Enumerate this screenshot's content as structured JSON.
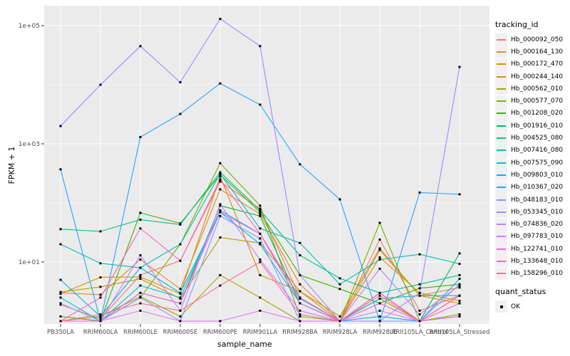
{
  "figure": {
    "colors": {
      "panel_background": "#EBEBEB",
      "gridline": "#FFFFFF",
      "axis_text": "#4D4D4D",
      "tick_mark": "#333333",
      "point_marker": "#000000"
    }
  },
  "chart_data": {
    "type": "line",
    "title": "",
    "xlabel": "sample_name",
    "ylabel": "FPKM + 1",
    "y_scale": "log10",
    "grid": true,
    "legend_position": "right",
    "y_ticks": [
      {
        "label": "1e+05",
        "value": 100000
      },
      {
        "label": "1e+03",
        "value": 1000
      },
      {
        "label": "1e+01",
        "value": 10
      }
    ],
    "y_minor_values": [
      1,
      100,
      10000
    ],
    "ylim": [
      1,
      200000
    ],
    "categories": [
      "PB350LA",
      "RRIM600LA",
      "RRIM600LE",
      "RRIM600SE",
      "RRIM600PE",
      "RRIM901LA",
      "RRIM928BA",
      "RRIM928LA",
      "RRIM928LE",
      "RRII105LA_Control",
      "RRII105LA_Stressed"
    ],
    "legend_title": "tracking_id",
    "quant_legend": {
      "title": "quant_status",
      "items": [
        {
          "label": "OK",
          "marker": "black-square"
        }
      ]
    },
    "series": [
      {
        "name": "Hb_000092_050",
        "color": "#F8766D",
        "values": [
          1.9,
          1.1,
          6,
          10.5,
          230,
          80,
          2.5,
          1,
          24,
          1.5,
          2.7
        ]
      },
      {
        "name": "Hb_000164_130",
        "color": "#EA8331",
        "values": [
          3.0,
          2.8,
          11,
          3.5,
          170,
          65,
          4.2,
          1,
          16,
          2.7,
          3.7
        ]
      },
      {
        "name": "Hb_000172_470",
        "color": "#D89000",
        "values": [
          2.9,
          5.5,
          5.6,
          2.9,
          280,
          6,
          3.2,
          1,
          12,
          3.0,
          2.2
        ]
      },
      {
        "name": "Hb_000244_140",
        "color": "#C09B00",
        "values": [
          3.1,
          3.8,
          5.2,
          2.4,
          26,
          21,
          3.2,
          1.2,
          17,
          2.7,
          2.0
        ]
      },
      {
        "name": "Hb_000562_010",
        "color": "#A3A500",
        "values": [
          1.0,
          1.2,
          2.6,
          1.2,
          6,
          2.5,
          1,
          1,
          2.4,
          1,
          1.2
        ]
      },
      {
        "name": "Hb_000577_070",
        "color": "#7CAE00",
        "values": [
          1.0,
          1.0,
          2.5,
          20,
          470,
          90,
          1.2,
          1,
          46,
          1,
          1.3
        ]
      },
      {
        "name": "Hb_001208_020",
        "color": "#39B600",
        "values": [
          1.2,
          1.0,
          68,
          45,
          300,
          70,
          6,
          3.5,
          2,
          3.6,
          4.2
        ]
      },
      {
        "name": "Hb_001916_010",
        "color": "#00BB4E",
        "values": [
          1.0,
          1.0,
          3,
          2,
          90,
          60,
          2,
          1,
          3,
          1,
          14
        ]
      },
      {
        "name": "Hb_004525_080",
        "color": "#00C087",
        "values": [
          36,
          33,
          52,
          43,
          330,
          75,
          13,
          5.3,
          3,
          4.2,
          6
        ]
      },
      {
        "name": "Hb_007416_080",
        "color": "#00C0B2",
        "values": [
          20,
          9.5,
          8,
          20,
          310,
          37,
          21,
          4.2,
          11,
          13.5,
          9.3
        ]
      },
      {
        "name": "Hb_007575_090",
        "color": "#00BCD8",
        "values": [
          2.5,
          1.0,
          4,
          2.5,
          75,
          30,
          2.4,
          1,
          2.4,
          2.7,
          2.7
        ]
      },
      {
        "name": "Hb_009803_010",
        "color": "#00B3F2",
        "values": [
          5.0,
          1.2,
          8,
          3,
          70,
          20,
          2,
          1,
          1.2,
          1,
          5.2
        ]
      },
      {
        "name": "Hb_010367_020",
        "color": "#29A3FF",
        "values": [
          370,
          1.0,
          1300,
          3200,
          10500,
          4600,
          450,
          115,
          1,
          150,
          140
        ]
      },
      {
        "name": "Hb_048183_010",
        "color": "#7C9DFF",
        "values": [
          2.0,
          1.0,
          2.5,
          1,
          60,
          25,
          1,
          1,
          1,
          1,
          4.2
        ]
      },
      {
        "name": "Hb_053345_010",
        "color": "#9B8BFF",
        "values": [
          2000,
          10000,
          45000,
          11000,
          130000,
          45000,
          6,
          1,
          1,
          3,
          20000
        ]
      },
      {
        "name": "Hb_074836_020",
        "color": "#C57BFF",
        "values": [
          1.0,
          1.0,
          13,
          1.5,
          95,
          11,
          1.5,
          1,
          7.7,
          1.3,
          4.0
        ]
      },
      {
        "name": "Hb_097783_010",
        "color": "#E56DF8",
        "values": [
          1.0,
          1.0,
          1.5,
          1,
          1,
          1.5,
          1,
          1,
          1.5,
          1,
          1.2
        ]
      },
      {
        "name": "Hb_122741_010",
        "color": "#F763DF",
        "values": [
          1.0,
          1.0,
          3,
          2,
          70,
          30,
          2,
          1,
          2,
          1,
          2.0
        ]
      },
      {
        "name": "Hb_133648_010",
        "color": "#FF61C0",
        "values": [
          1.0,
          2.5,
          37,
          10.5,
          250,
          30,
          2.5,
          1,
          3,
          1,
          2.7
        ]
      },
      {
        "name": "Hb_158296_010",
        "color": "#FF6C91",
        "values": [
          1.0,
          1.3,
          2,
          1.5,
          4,
          10,
          1.3,
          1,
          2.7,
          1,
          2.7
        ]
      }
    ]
  }
}
